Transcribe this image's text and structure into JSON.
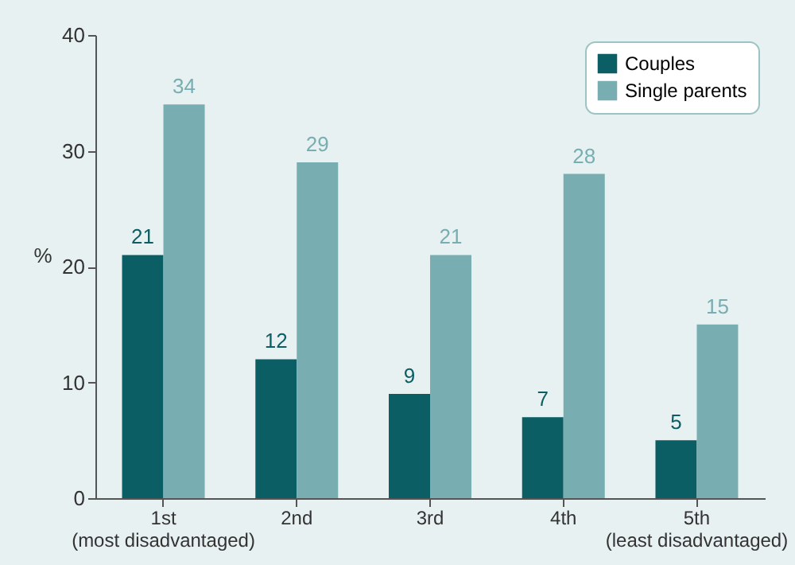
{
  "chart_data": {
    "type": "bar",
    "ylabel": "%",
    "categories": [
      "1st\n(most disadvantaged)",
      "2nd",
      "3rd",
      "4th",
      "5th\n(least disadvantaged)"
    ],
    "series": [
      {
        "name": "Couples",
        "color": "#0b5e63",
        "values": [
          21,
          12,
          9,
          7,
          5
        ]
      },
      {
        "name": "Single parents",
        "color": "#78aeb2",
        "values": [
          34,
          29,
          21,
          28,
          15
        ]
      }
    ],
    "ylim": [
      0,
      40
    ],
    "yticks": [
      0,
      10,
      20,
      30,
      40
    ],
    "data_labels": true,
    "legend": "top right"
  }
}
